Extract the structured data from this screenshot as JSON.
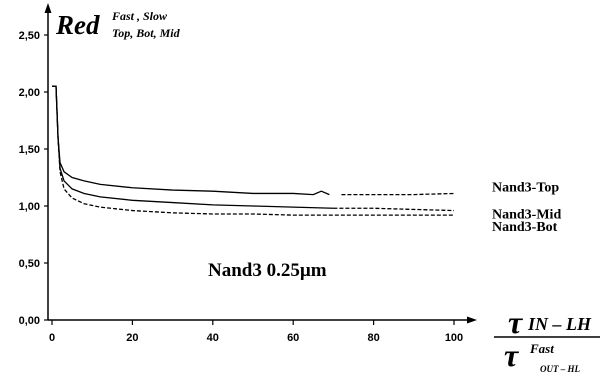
{
  "chart_data": {
    "type": "line",
    "annotation": "Nand3 0.25µm",
    "ylabel": {
      "main": "Red",
      "sup": "Fast , Slow",
      "sub": "Top, Bot, Mid"
    },
    "xlabel": {
      "num_tau": "τ",
      "num_sub": "IN – LH",
      "den_tau": "τ",
      "den_sup": "Fast",
      "den_sub": "OUT – HL"
    },
    "xlim": [
      0,
      100
    ],
    "ylim": [
      0,
      2.5
    ],
    "x_ticks": [
      "0",
      "20",
      "40",
      "60",
      "80",
      "100"
    ],
    "y_ticks": [
      "0,00",
      "0,50",
      "1,00",
      "1,50",
      "2,00",
      "2,50"
    ],
    "grid": false,
    "series": [
      {
        "name": "Nand3-Top",
        "style": "solid-to-dashed",
        "x": [
          0,
          1,
          1.5,
          2,
          3,
          5,
          8,
          12,
          20,
          30,
          40,
          50,
          60,
          65,
          67,
          69,
          72,
          80,
          90,
          100
        ],
        "y": [
          2.05,
          2.05,
          1.6,
          1.38,
          1.3,
          1.25,
          1.22,
          1.19,
          1.16,
          1.14,
          1.13,
          1.11,
          1.11,
          1.1,
          1.13,
          1.1,
          1.1,
          1.1,
          1.1,
          1.11
        ]
      },
      {
        "name": "Nand3-Mid",
        "style": "solid-to-dashed",
        "x": [
          0,
          1,
          1.5,
          2,
          3,
          5,
          8,
          12,
          20,
          30,
          40,
          50,
          60,
          70,
          80,
          90,
          100
        ],
        "y": [
          2.05,
          2.05,
          1.6,
          1.33,
          1.22,
          1.15,
          1.11,
          1.08,
          1.05,
          1.03,
          1.01,
          1.0,
          0.99,
          0.98,
          0.98,
          0.97,
          0.96
        ]
      },
      {
        "name": "Nand3-Bot",
        "style": "dashed",
        "x": [
          0,
          1,
          1.5,
          2,
          3,
          5,
          8,
          12,
          20,
          30,
          40,
          50,
          60,
          70,
          80,
          90,
          100
        ],
        "y": [
          2.05,
          2.05,
          1.6,
          1.3,
          1.15,
          1.07,
          1.02,
          0.99,
          0.96,
          0.94,
          0.93,
          0.93,
          0.92,
          0.92,
          0.92,
          0.92,
          0.92
        ]
      }
    ]
  }
}
